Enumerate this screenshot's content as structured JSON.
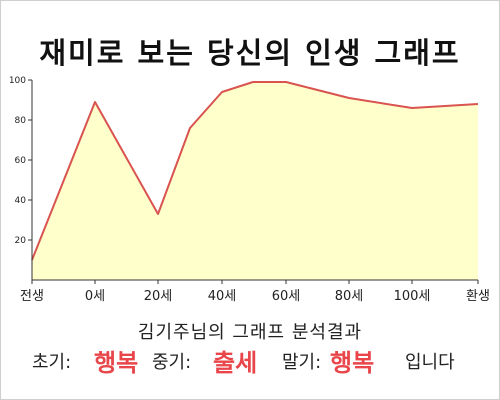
{
  "title": "재미로 보는 당신의 인생 그래프",
  "chart_data": {
    "type": "area",
    "x_categories": [
      "전생",
      "0세",
      "20세",
      "40세",
      "60세",
      "80세",
      "100세",
      "환생"
    ],
    "points": [
      {
        "x": "전생",
        "y": 10
      },
      {
        "x": "0세",
        "y": 89
      },
      {
        "x": "20세",
        "y": 33
      },
      {
        "x": "30세",
        "y": 76
      },
      {
        "x": "40세",
        "y": 94
      },
      {
        "x": "50세",
        "y": 99
      },
      {
        "x": "60세",
        "y": 99
      },
      {
        "x": "80세",
        "y": 91
      },
      {
        "x": "100세",
        "y": 86
      },
      {
        "x": "환생",
        "y": 88
      }
    ],
    "y_ticks": [
      20,
      40,
      60,
      80,
      100
    ],
    "ylim": [
      0,
      100
    ],
    "grid": false,
    "colors": {
      "fill": "#ffffcc",
      "line": "#d9534f",
      "axis": "#333333"
    }
  },
  "result": {
    "line1": "김기주님의 그래프 분석결과",
    "early_label": "초기:",
    "early_value": "행복",
    "mid_label": "중기:",
    "mid_value": "출세",
    "late_label": "말기:",
    "late_value": "행복",
    "ending": "입니다"
  }
}
